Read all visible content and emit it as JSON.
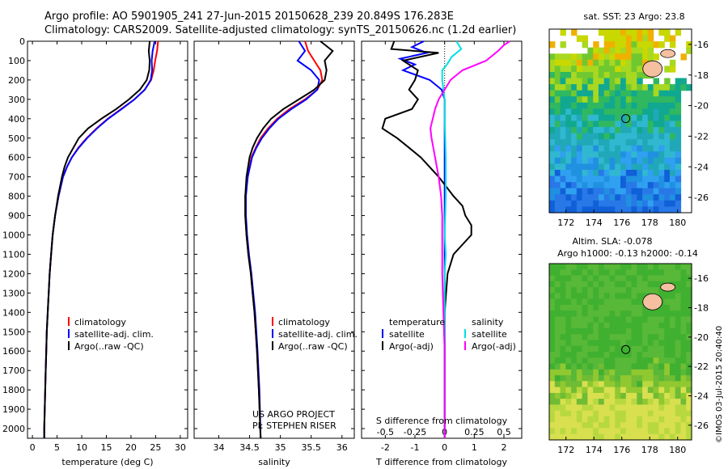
{
  "title_line1": "Argo profile: AO 5901905_241 27-Jun-2015 20150628_239 20.849S 176.283E",
  "title_line2": "Climatology: CARS2009. Satellite-adjusted climatology: synTS_20150626.nc (1.2d earlier)",
  "project_line1": "US ARGO PROJECT",
  "project_line2": "PI: STEPHEN RISER",
  "sst_label": "sat. SST: 23 Argo: 23.8",
  "altim_label": "Altim. SLA: -0.078",
  "h_label": "Argo h1000: -0.13 h2000: -0.14",
  "credit": "©IMOS 03-Jul-2015 20:40:40",
  "colors": {
    "climatology": "#ff0000",
    "satellite": "#0000ff",
    "argo": "#000000",
    "cyan": "#00e0e0",
    "magenta": "#ff00ff"
  },
  "chart_data": [
    {
      "type": "line",
      "xlabel": "temperature (deg C)",
      "xlim": [
        -1,
        31.5
      ],
      "xticks": [
        0,
        5,
        10,
        15,
        20,
        25,
        30
      ],
      "ylim": [
        2050,
        0
      ],
      "yticks": [
        0,
        100,
        200,
        300,
        400,
        500,
        600,
        700,
        800,
        900,
        1000,
        1100,
        1200,
        1300,
        1400,
        1500,
        1600,
        1700,
        1800,
        1900,
        2000
      ],
      "legend": [
        {
          "name": "climatology",
          "color": "#ff0000"
        },
        {
          "name": "satellite-adj. clim.",
          "color": "#0000ff"
        },
        {
          "name": "Argo(..raw -QC)",
          "color": "#000000"
        }
      ],
      "series": [
        {
          "name": "climatology",
          "color": "#ff0000",
          "depth": [
            0,
            50,
            100,
            150,
            200,
            250,
            300,
            350,
            400,
            450,
            500,
            550,
            600,
            650,
            700,
            800,
            900,
            1000,
            1100,
            1200,
            1300,
            1400,
            1500,
            1600,
            1700,
            1800,
            1900,
            2000,
            2050
          ],
          "values": [
            25.5,
            25.3,
            24.9,
            24.6,
            24.1,
            22.8,
            20.7,
            18.0,
            15.3,
            13.0,
            11.0,
            9.3,
            8.0,
            7.0,
            6.2,
            5.3,
            4.6,
            4.1,
            3.8,
            3.5,
            3.3,
            3.1,
            2.9,
            2.8,
            2.7,
            2.6,
            2.5,
            2.4,
            2.4
          ]
        },
        {
          "name": "satellite-adj. clim.",
          "color": "#0000ff",
          "depth": [
            0,
            50,
            100,
            150,
            200,
            250,
            300,
            350,
            400,
            450,
            500,
            550,
            600,
            650,
            700,
            800,
            900,
            1000,
            1100,
            1200,
            1300,
            1400,
            1500,
            1600,
            1700,
            1800,
            1900,
            2000,
            2050
          ],
          "values": [
            24.8,
            24.4,
            24.2,
            24.3,
            24.0,
            22.8,
            20.7,
            18.1,
            15.4,
            13.1,
            11.1,
            9.4,
            8.0,
            7.0,
            6.2,
            5.3,
            4.6,
            4.1,
            3.8,
            3.5,
            3.3,
            3.1,
            2.9,
            2.8,
            2.7,
            2.6,
            2.5,
            2.4,
            2.4
          ]
        },
        {
          "name": "Argo(..raw -QC)",
          "color": "#000000",
          "depth": [
            0,
            50,
            100,
            150,
            200,
            250,
            300,
            350,
            400,
            450,
            500,
            550,
            600,
            650,
            700,
            800,
            900,
            1000,
            1100,
            1200,
            1300,
            1400,
            1500,
            1600,
            1700,
            1800,
            1900,
            2000,
            2050
          ],
          "values": [
            23.8,
            23.6,
            23.8,
            23.7,
            23.2,
            21.8,
            19.6,
            17.0,
            14.0,
            11.3,
            9.4,
            8.3,
            7.2,
            6.5,
            6.0,
            5.2,
            4.6,
            4.1,
            3.8,
            3.5,
            3.3,
            3.1,
            2.9,
            2.8,
            2.7,
            2.6,
            2.5,
            2.4,
            2.4
          ]
        }
      ]
    },
    {
      "type": "line",
      "xlabel": "salinity",
      "xlim": [
        33.6,
        36.2
      ],
      "xticks": [
        34,
        34.5,
        35,
        35.5,
        36
      ],
      "ylim": [
        2050,
        0
      ],
      "legend": [
        {
          "name": "climatology",
          "color": "#ff0000"
        },
        {
          "name": "satellite-adj. clim.",
          "color": "#0000ff"
        },
        {
          "name": "Argo(..raw -QC)",
          "color": "#000000"
        }
      ],
      "series": [
        {
          "name": "climatology",
          "color": "#ff0000",
          "depth": [
            0,
            50,
            100,
            150,
            200,
            250,
            300,
            350,
            400,
            450,
            500,
            550,
            600,
            700,
            800,
            900,
            1000,
            1100,
            1200,
            1300,
            1400,
            1500,
            1600,
            1800,
            2050
          ],
          "values": [
            35.4,
            35.45,
            35.55,
            35.65,
            35.68,
            35.6,
            35.4,
            35.15,
            34.95,
            34.8,
            34.68,
            34.6,
            34.53,
            34.47,
            34.43,
            34.43,
            34.45,
            34.48,
            34.52,
            34.55,
            34.58,
            34.6,
            34.62,
            34.65,
            34.68
          ]
        },
        {
          "name": "satellite-adj. clim.",
          "color": "#0000ff",
          "depth": [
            0,
            50,
            100,
            150,
            200,
            250,
            300,
            350,
            400,
            450,
            500,
            550,
            600,
            700,
            800,
            900,
            1000,
            1100,
            1200,
            1300,
            1400,
            1500,
            1600,
            1800,
            2050
          ],
          "values": [
            35.3,
            35.4,
            35.28,
            35.5,
            35.63,
            35.6,
            35.42,
            35.18,
            34.97,
            34.82,
            34.7,
            34.61,
            34.54,
            34.47,
            34.44,
            34.44,
            34.46,
            34.49,
            34.53,
            34.56,
            34.59,
            34.61,
            34.63,
            34.66,
            34.68
          ]
        },
        {
          "name": "Argo(..raw -QC)",
          "color": "#000000",
          "depth": [
            0,
            50,
            100,
            150,
            200,
            250,
            300,
            350,
            400,
            450,
            500,
            550,
            600,
            700,
            800,
            900,
            1000,
            1100,
            1200,
            1300,
            1400,
            1500,
            1600,
            1800,
            2050
          ],
          "values": [
            35.65,
            35.85,
            35.72,
            35.75,
            35.72,
            35.55,
            35.3,
            35.05,
            34.85,
            34.72,
            34.62,
            34.55,
            34.5,
            34.45,
            34.43,
            34.43,
            34.45,
            34.48,
            34.52,
            34.55,
            34.58,
            34.6,
            34.62,
            34.65,
            34.68
          ]
        }
      ]
    },
    {
      "type": "line",
      "xlabel": "T difference from climatology",
      "x2label": "S difference from climatology",
      "xlim": [
        -2.8,
        2.6
      ],
      "xticks": [
        -2,
        -1,
        0,
        1,
        2
      ],
      "x2lim": [
        -0.7,
        0.65
      ],
      "x2ticks": [
        -0.5,
        -0.25,
        0,
        0.25,
        0.5
      ],
      "x2ticklabels": [
        "-0.5",
        "-0.25",
        "0",
        "0.25",
        "0.5"
      ],
      "ylim": [
        2050,
        0
      ],
      "legend_temperature_title": "temperature",
      "legend_salinity_title": "salinity",
      "legend": [
        {
          "name": "satellite",
          "color": "#0000ff"
        },
        {
          "name": "Argo(-adj)",
          "color": "#000000"
        },
        {
          "name": "satellite",
          "color": "#00e0e0"
        },
        {
          "name": "Argo(-adj)",
          "color": "#ff00ff"
        }
      ],
      "series": [
        {
          "name": "T satellite",
          "axis": "T",
          "color": "#0000ff",
          "depth": [
            0,
            30,
            60,
            90,
            120,
            150,
            200,
            250,
            300,
            400,
            500,
            600,
            800,
            1000,
            1500,
            2050
          ],
          "values": [
            -0.7,
            -1.1,
            -0.6,
            -1.5,
            -1.0,
            -1.4,
            -0.5,
            -0.1,
            0,
            0,
            0,
            0,
            0,
            0,
            0,
            0
          ]
        },
        {
          "name": "T Argo(-adj)",
          "axis": "T",
          "color": "#000000",
          "depth": [
            0,
            40,
            60,
            100,
            150,
            200,
            250,
            300,
            350,
            400,
            450,
            500,
            550,
            600,
            650,
            700,
            800,
            850,
            900,
            950,
            1000,
            1050,
            1100,
            1200,
            1400,
            1600,
            1800,
            2050
          ],
          "values": [
            -1.7,
            -1.8,
            -0.2,
            -1.4,
            -0.9,
            -1.0,
            -1.2,
            -0.9,
            -1.1,
            -2.0,
            -2.1,
            -1.6,
            -1.2,
            -0.8,
            -0.5,
            -0.2,
            0.3,
            0.6,
            0.7,
            0.9,
            0.9,
            0.6,
            0.3,
            0.1,
            0,
            0,
            0,
            0
          ]
        },
        {
          "name": "S satellite",
          "axis": "S",
          "color": "#00e0e0",
          "depth": [
            0,
            40,
            80,
            120,
            150,
            200,
            300,
            400,
            600,
            800,
            1000,
            1100,
            1200,
            1300,
            1500,
            2050
          ],
          "values": [
            0.1,
            0.14,
            0.06,
            0.02,
            -0.02,
            -0.02,
            0,
            0,
            0.01,
            0.01,
            0.0,
            0.01,
            0.0,
            0.0,
            0.0,
            0.0
          ]
        },
        {
          "name": "S Argo(-adj)",
          "axis": "S",
          "color": "#ff00ff",
          "depth": [
            0,
            20,
            50,
            100,
            150,
            200,
            250,
            300,
            350,
            400,
            450,
            500,
            600,
            700,
            800,
            900,
            1000,
            1100,
            1200,
            1400,
            1600,
            1800,
            2050
          ],
          "values": [
            0.55,
            0.5,
            0.45,
            0.35,
            0.15,
            0.05,
            0.0,
            -0.05,
            -0.08,
            -0.1,
            -0.12,
            -0.11,
            -0.08,
            -0.05,
            -0.03,
            -0.02,
            -0.02,
            -0.02,
            -0.02,
            -0.01,
            0.0,
            0.0,
            0.0
          ]
        }
      ]
    },
    {
      "type": "heatmap",
      "title": "sat. SST: 23 Argo: 23.8",
      "xlim": [
        170.8,
        181
      ],
      "ylim": [
        -27,
        -15
      ],
      "xticks": [
        172,
        174,
        176,
        178,
        180
      ],
      "yticks": [
        -16,
        -18,
        -20,
        -22,
        -24,
        -26
      ],
      "argo_position": [
        176.283,
        -20.849
      ]
    },
    {
      "type": "heatmap",
      "title": "Altim. SLA: -0.078",
      "subtitle": "Argo h1000: -0.13 h2000: -0.14",
      "xlim": [
        170.8,
        181
      ],
      "ylim": [
        -27,
        -15
      ],
      "xticks": [
        172,
        174,
        176,
        178,
        180
      ],
      "yticks": [
        -16,
        -18,
        -20,
        -22,
        -24,
        -26
      ],
      "argo_position": [
        176.283,
        -20.849
      ]
    }
  ]
}
